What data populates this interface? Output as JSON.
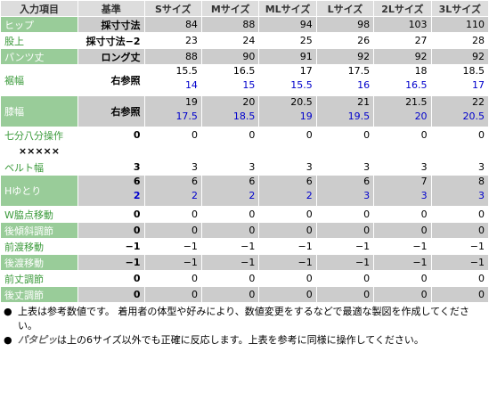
{
  "table": {
    "header": [
      "入力項目",
      "基準",
      "Sサイズ",
      "Mサイズ",
      "MLサイズ",
      "Lサイズ",
      "2Lサイズ",
      "3Lサイズ"
    ],
    "rows": [
      {
        "label": "ヒップ",
        "base": "採寸寸法",
        "values": [
          "84",
          "88",
          "94",
          "98",
          "103",
          "110"
        ]
      },
      {
        "label": "股上",
        "base": "採寸寸法−2",
        "values": [
          "23",
          "24",
          "25",
          "26",
          "27",
          "28"
        ]
      },
      {
        "label": "パンツ丈",
        "base": "ロング丈",
        "values": [
          "88",
          "90",
          "91",
          "92",
          "92",
          "92"
        ]
      },
      {
        "label": "裾幅",
        "base": "右参照",
        "values": [
          [
            "15.5",
            "14"
          ],
          [
            "16.5",
            "15"
          ],
          [
            "17",
            "15.5"
          ],
          [
            "17.5",
            "16"
          ],
          [
            "18",
            "16.5"
          ],
          [
            "18.5",
            "17"
          ]
        ]
      },
      {
        "label": "膝幅",
        "base": "右参照",
        "values": [
          [
            "19",
            "17.5"
          ],
          [
            "20",
            "18.5"
          ],
          [
            "20.5",
            "19"
          ],
          [
            "21",
            "19.5"
          ],
          [
            "21.5",
            "20"
          ],
          [
            "22",
            "20.5"
          ]
        ]
      },
      {
        "label": "七分八分操作",
        "base": "0",
        "values": [
          "0",
          "0",
          "0",
          "0",
          "0",
          "0"
        ]
      },
      {
        "label": "×××××"
      },
      {
        "label": "ベルト幅",
        "base": "3",
        "values": [
          "3",
          "3",
          "3",
          "3",
          "3",
          "3"
        ]
      },
      {
        "label": "Hゆとり",
        "base": [
          "6",
          "2"
        ],
        "values": [
          [
            "6",
            "2"
          ],
          [
            "6",
            "2"
          ],
          [
            "6",
            "2"
          ],
          [
            "6",
            "3"
          ],
          [
            "7",
            "3"
          ],
          [
            "8",
            "3"
          ]
        ]
      },
      {
        "label": "W脇点移動",
        "base": "0",
        "values": [
          "0",
          "0",
          "0",
          "0",
          "0",
          "0"
        ]
      },
      {
        "label": "後傾斜調節",
        "base": "0",
        "values": [
          "0",
          "0",
          "0",
          "0",
          "0",
          "0"
        ]
      },
      {
        "label": "前渡移動",
        "base": "−1",
        "values": [
          "−1",
          "−1",
          "−1",
          "−1",
          "−1",
          "−1"
        ]
      },
      {
        "label": "後渡移動",
        "base": "−1",
        "values": [
          "−1",
          "−1",
          "−1",
          "−1",
          "−1",
          "−1"
        ]
      },
      {
        "label": "前丈調節",
        "base": "0",
        "values": [
          "0",
          "0",
          "0",
          "0",
          "0",
          "0"
        ]
      },
      {
        "label": "後丈調節",
        "base": "0",
        "values": [
          "0",
          "0",
          "0",
          "0",
          "0",
          "0"
        ]
      }
    ]
  },
  "notes": [
    {
      "text": "上表は参考数値です。 着用者の体型や好みにより、数値変更をするなどで最適な製図を作成してください。"
    },
    {
      "brand": "パタピッ",
      "text": "は上の6サイズ以外でも正確に反応します。上表を参考に同様に操作してください。"
    }
  ]
}
